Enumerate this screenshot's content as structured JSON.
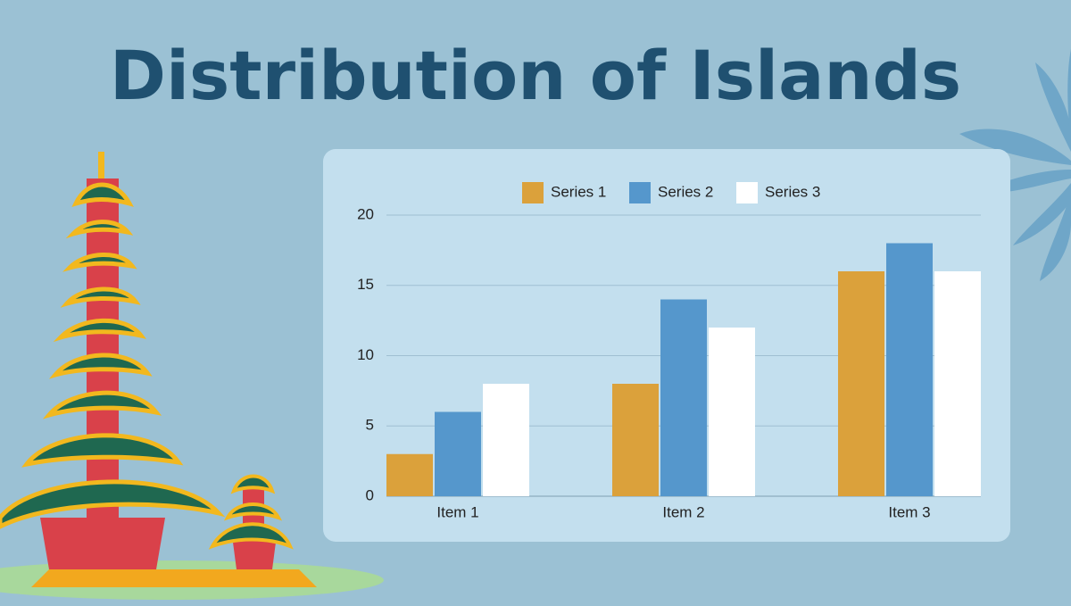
{
  "chart_data": {
    "type": "bar",
    "title": "Distribution of Islands",
    "categories": [
      "Item 1",
      "Item 2",
      "Item 3"
    ],
    "series": [
      {
        "name": "Series 1",
        "color": "#dba13b",
        "values": [
          3,
          8,
          16
        ]
      },
      {
        "name": "Series 2",
        "color": "#5597cc",
        "values": [
          6,
          14,
          18
        ]
      },
      {
        "name": "Series 3",
        "color": "#ffffff",
        "values": [
          8,
          12,
          16
        ]
      }
    ],
    "ylim": [
      0,
      20
    ],
    "yticks": [
      0,
      5,
      10,
      15,
      20
    ],
    "grid": true,
    "legend": "top"
  }
}
